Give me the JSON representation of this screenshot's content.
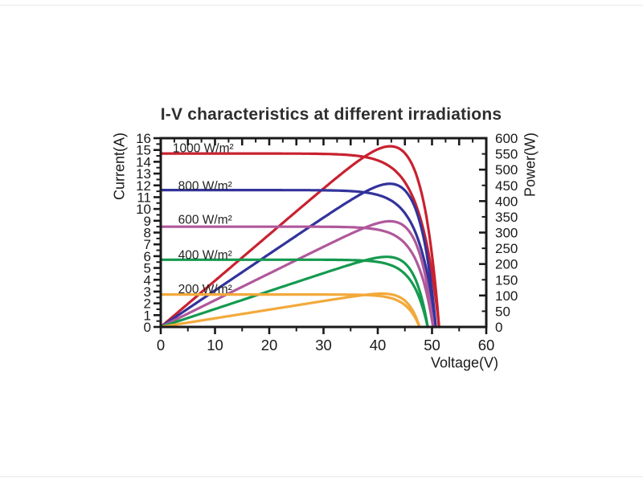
{
  "window": {
    "background": "#ffffff"
  },
  "chart_data": {
    "type": "line",
    "title": "I-V characteristics at different irradiations",
    "xlabel": "Voltage(V)",
    "ylabel_left": "Current(A)",
    "ylabel_right": "Power(W)",
    "grid": false,
    "legend_position": "inline-labels-left",
    "frame_color": "#1a1a1a",
    "text_color": "#1a1a1a",
    "title_color": "#2e2e2e",
    "power_scale_W_per_A": 37.5,
    "axes": {
      "x": {
        "min": 0,
        "max": 60,
        "major_step": 10,
        "minor_step": 5,
        "top_major_step": 5,
        "top_minor_step": 2.5,
        "tick_labels": [
          0,
          10,
          20,
          30,
          40,
          50,
          60
        ]
      },
      "y_left": {
        "min": 0,
        "max": 16,
        "major_step": 1,
        "minor_step": 0.5,
        "tick_labels": [
          0,
          1,
          2,
          3,
          4,
          5,
          6,
          7,
          8,
          9,
          10,
          11,
          12,
          13,
          14,
          15,
          16
        ]
      },
      "y_right": {
        "min": 0,
        "max": 600,
        "major_step": 100,
        "minor_step": 50,
        "label_step": 50,
        "tick_labels": [
          0,
          50,
          100,
          150,
          200,
          250,
          300,
          350,
          400,
          450,
          500,
          550,
          600
        ]
      }
    },
    "curves_per_series": [
      "I-V (current vs voltage, left axis)",
      "P-V (power vs voltage, right axis)"
    ],
    "model_note": "I(V)=Isc*(1-exp((V-Voc)/knee)); P(V)=V*I(V); right axis 600 W aligns with left axis 16 A",
    "series": [
      {
        "id": "1000",
        "name": "1000 W/m²",
        "color": "#c9212f",
        "isc_A": 14.7,
        "voc_V": 51.3,
        "knee_V": 3.5,
        "mpp": {
          "v_V": 42,
          "p_W": 570
        },
        "label": {
          "text": "1000 W/m²",
          "v": 2.2,
          "i": 15.15
        },
        "iv_points": [
          [
            0,
            14.7
          ],
          [
            10,
            14.7
          ],
          [
            20,
            14.7
          ],
          [
            30,
            14.67
          ],
          [
            35,
            14.56
          ],
          [
            40,
            14.12
          ],
          [
            45,
            12.27
          ],
          [
            48,
            8.98
          ],
          [
            50,
            4.56
          ],
          [
            51.3,
            0
          ]
        ]
      },
      {
        "id": "800",
        "name": "800 W/m²",
        "color": "#33339c",
        "isc_A": 11.6,
        "voc_V": 50.7,
        "knee_V": 3.2,
        "mpp": {
          "v_V": 42,
          "p_W": 460
        },
        "label": {
          "text": "800 W/m²",
          "v": 3.2,
          "i": 11.95
        },
        "iv_points": [
          [
            0,
            11.6
          ],
          [
            10,
            11.6
          ],
          [
            20,
            11.6
          ],
          [
            30,
            11.58
          ],
          [
            35,
            11.51
          ],
          [
            40,
            11.19
          ],
          [
            45,
            9.65
          ],
          [
            48,
            6.61
          ],
          [
            50,
            2.28
          ],
          [
            50.7,
            0
          ]
        ]
      },
      {
        "id": "600",
        "name": "600 W/m²",
        "color": "#b0589b",
        "isc_A": 8.5,
        "voc_V": 50.2,
        "knee_V": 2.9,
        "mpp": {
          "v_V": 41,
          "p_W": 340
        },
        "label": {
          "text": "600 W/m²",
          "v": 3.2,
          "i": 9.1
        },
        "iv_points": [
          [
            0,
            8.5
          ],
          [
            10,
            8.5
          ],
          [
            20,
            8.5
          ],
          [
            30,
            8.49
          ],
          [
            35,
            8.45
          ],
          [
            40,
            8.25
          ],
          [
            45,
            7.09
          ],
          [
            48,
            4.52
          ],
          [
            50,
            0.57
          ],
          [
            50.2,
            0
          ]
        ]
      },
      {
        "id": "400",
        "name": "400 W/m²",
        "color": "#149a4f",
        "isc_A": 5.7,
        "voc_V": 49.2,
        "knee_V": 2.7,
        "mpp": {
          "v_V": 41,
          "p_W": 225
        },
        "label": {
          "text": "400 W/m²",
          "v": 3.2,
          "i": 6.1
        },
        "iv_points": [
          [
            0,
            5.7
          ],
          [
            10,
            5.7
          ],
          [
            20,
            5.7
          ],
          [
            30,
            5.69
          ],
          [
            35,
            5.67
          ],
          [
            40,
            5.51
          ],
          [
            45,
            4.5
          ],
          [
            48,
            2.04
          ],
          [
            49.2,
            0
          ]
        ]
      },
      {
        "id": "200",
        "name": "200 W/m²",
        "color": "#f2a93b",
        "isc_A": 2.75,
        "voc_V": 47.7,
        "knee_V": 2.4,
        "mpp": {
          "v_V": 40,
          "p_W": 105
        },
        "label": {
          "text": "200 W/m²",
          "v": 3.2,
          "i": 3.2
        },
        "iv_points": [
          [
            0,
            2.75
          ],
          [
            10,
            2.75
          ],
          [
            20,
            2.75
          ],
          [
            30,
            2.75
          ],
          [
            35,
            2.74
          ],
          [
            40,
            2.64
          ],
          [
            45,
            1.86
          ],
          [
            47,
            0.7
          ],
          [
            47.7,
            0
          ]
        ]
      }
    ]
  }
}
